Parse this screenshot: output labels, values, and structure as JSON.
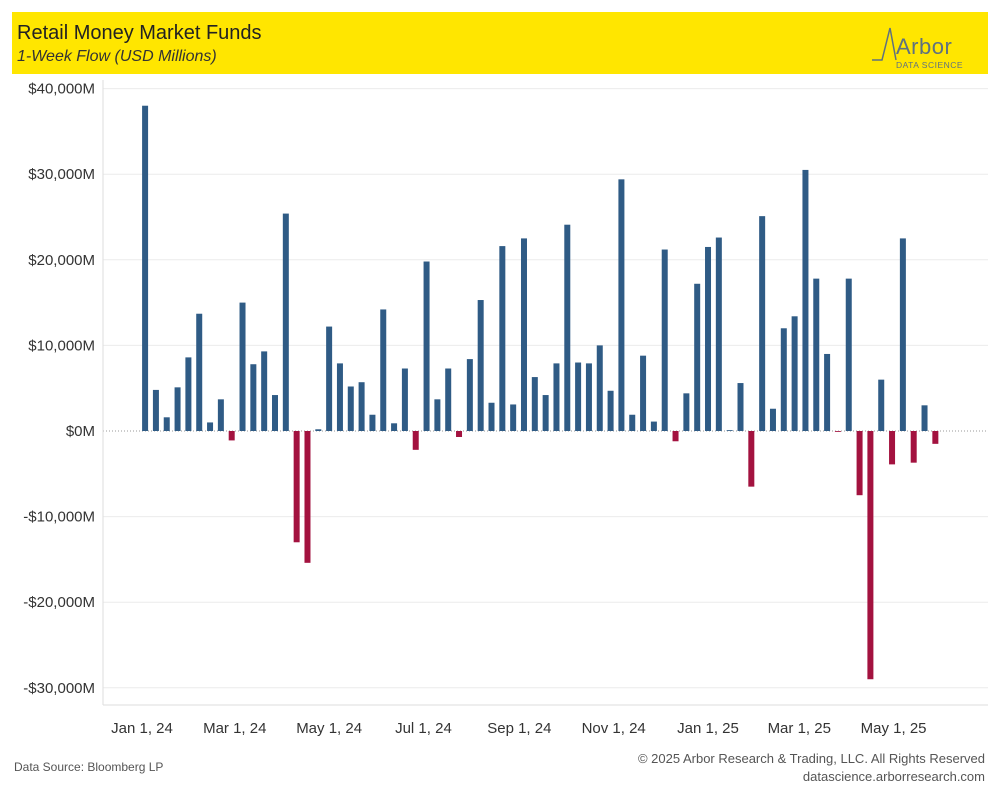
{
  "header": {
    "title": "Retail Money Market Funds",
    "subtitle": "1-Week Flow (USD Millions)",
    "logo_name": "Arbor",
    "logo_sub": "DATA SCIENCE"
  },
  "footer": {
    "source": "Data Source: Bloomberg LP",
    "copyright": "© 2025 Arbor Research & Trading, LLC. All Rights Reserved",
    "website": "datascience.arborresearch.com"
  },
  "colors": {
    "positive": "#2f5b85",
    "negative": "#a3123f",
    "header_bg": "#ffe600"
  },
  "chart_data": {
    "type": "bar",
    "y_ticks": [
      40000,
      30000,
      20000,
      10000,
      0,
      -10000,
      -20000,
      -30000
    ],
    "y_tick_labels": [
      "$40,000M",
      "$30,000M",
      "$20,000M",
      "$10,000M",
      "$0M",
      "-$10,000M",
      "-$20,000M",
      "-$30,000M"
    ],
    "ylim": [
      -32000,
      41500
    ],
    "x_tick_labels": [
      "Jan 1, 24",
      "Mar 1, 24",
      "May 1, 24",
      "Jul 1, 24",
      "Sep 1, 24",
      "Nov 1, 24",
      "Jan 1, 25",
      "Mar 1, 25",
      "May 1, 25"
    ],
    "x_tick_dates": [
      "2024-01-01",
      "2024-03-01",
      "2024-05-01",
      "2024-07-01",
      "2024-09-01",
      "2024-11-01",
      "2025-01-01",
      "2025-03-01",
      "2025-05-01"
    ],
    "grid": true,
    "dates": [
      "2024-01-03",
      "2024-01-10",
      "2024-01-17",
      "2024-01-24",
      "2024-01-31",
      "2024-02-07",
      "2024-02-14",
      "2024-02-21",
      "2024-02-28",
      "2024-03-06",
      "2024-03-13",
      "2024-03-20",
      "2024-03-27",
      "2024-04-03",
      "2024-04-10",
      "2024-04-17",
      "2024-04-24",
      "2024-05-01",
      "2024-05-08",
      "2024-05-15",
      "2024-05-22",
      "2024-05-29",
      "2024-06-05",
      "2024-06-12",
      "2024-06-19",
      "2024-06-26",
      "2024-07-03",
      "2024-07-10",
      "2024-07-17",
      "2024-07-24",
      "2024-07-31",
      "2024-08-07",
      "2024-08-14",
      "2024-08-21",
      "2024-08-28",
      "2024-09-04",
      "2024-09-11",
      "2024-09-18",
      "2024-09-25",
      "2024-10-02",
      "2024-10-09",
      "2024-10-16",
      "2024-10-23",
      "2024-10-30",
      "2024-11-06",
      "2024-11-13",
      "2024-11-20",
      "2024-11-27",
      "2024-12-04",
      "2024-12-11",
      "2024-12-18",
      "2024-12-25",
      "2025-01-01",
      "2025-01-08",
      "2025-01-15",
      "2025-01-22",
      "2025-01-29",
      "2025-02-05",
      "2025-02-12",
      "2025-02-19",
      "2025-02-26",
      "2025-03-05",
      "2025-03-12",
      "2025-03-19",
      "2025-03-26",
      "2025-04-02",
      "2025-04-09",
      "2025-04-16",
      "2025-04-23",
      "2025-04-30",
      "2025-05-07",
      "2025-05-14",
      "2025-05-21",
      "2025-05-28"
    ],
    "values": [
      38000,
      4800,
      1600,
      5100,
      8600,
      13700,
      1000,
      3700,
      -1100,
      15000,
      7800,
      9300,
      4200,
      25400,
      -13000,
      -15400,
      200,
      12200,
      7900,
      5200,
      5700,
      1900,
      14200,
      900,
      7300,
      -2200,
      19800,
      3700,
      7300,
      -700,
      8400,
      15300,
      3300,
      21600,
      3100,
      22500,
      6300,
      4200,
      7900,
      24100,
      8000,
      7900,
      10000,
      4700,
      29400,
      1900,
      8800,
      1100,
      21200,
      -1200,
      4400,
      17200,
      21500,
      22600,
      100,
      5600,
      -6500,
      25100,
      2600,
      12000,
      13400,
      30500,
      17800,
      9000,
      -100,
      17800,
      -7500,
      -29000,
      6000,
      -3900,
      22500,
      -3700,
      3000,
      -1500
    ]
  }
}
